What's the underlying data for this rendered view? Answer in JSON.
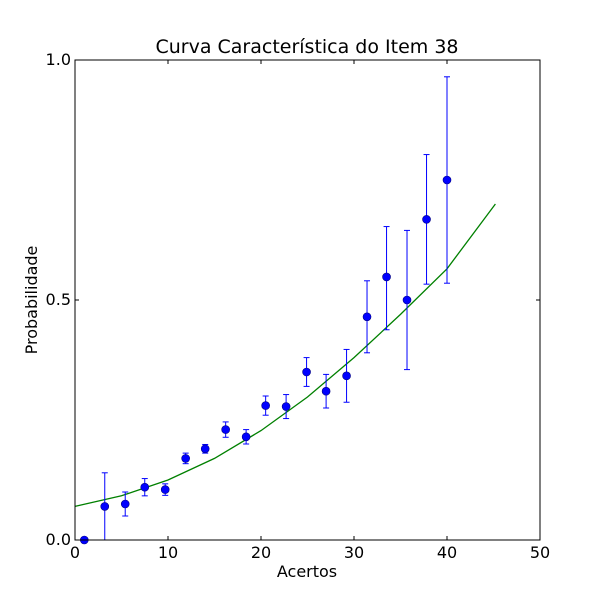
{
  "chart_data": {
    "type": "scatter",
    "title": "Curva Característica do Item 38",
    "xlabel": "Acertos",
    "ylabel": "Probabilidade",
    "xlim": [
      0,
      50
    ],
    "ylim": [
      0.0,
      1.0
    ],
    "xticks": [
      0,
      10,
      20,
      30,
      40,
      50
    ],
    "xtick_labels": [
      "0",
      "10",
      "20",
      "30",
      "40",
      "50"
    ],
    "yticks": [
      0.0,
      0.5,
      1.0
    ],
    "ytick_labels": [
      "0.0",
      "0.5",
      "1.0"
    ],
    "grid": false,
    "legend": "none",
    "points": {
      "color": "#0000ff",
      "x": [
        1.0,
        3.2,
        5.4,
        7.5,
        9.7,
        11.9,
        14.0,
        16.2,
        18.4,
        20.5,
        22.7,
        24.9,
        27.0,
        29.2,
        31.4,
        33.5,
        35.7,
        37.8,
        40.0
      ],
      "y": [
        0.0,
        0.07,
        0.075,
        0.11,
        0.105,
        0.17,
        0.19,
        0.23,
        0.215,
        0.28,
        0.278,
        0.35,
        0.31,
        0.342,
        0.465,
        0.548,
        0.5,
        0.668,
        0.75
      ],
      "err_low": [
        0.0,
        0.07,
        0.025,
        0.018,
        0.012,
        0.011,
        0.009,
        0.016,
        0.015,
        0.02,
        0.025,
        0.03,
        0.035,
        0.055,
        0.075,
        0.11,
        0.145,
        0.135,
        0.215
      ],
      "err_high": [
        0.0,
        0.07,
        0.025,
        0.018,
        0.012,
        0.011,
        0.009,
        0.016,
        0.015,
        0.02,
        0.025,
        0.03,
        0.035,
        0.055,
        0.075,
        0.105,
        0.145,
        0.135,
        0.215
      ]
    },
    "curve": {
      "color": "#008000",
      "x": [
        0,
        5,
        10,
        15,
        20,
        25,
        30,
        35,
        40,
        45.2
      ],
      "y": [
        0.07,
        0.092,
        0.125,
        0.17,
        0.228,
        0.298,
        0.38,
        0.47,
        0.565,
        0.7
      ]
    }
  }
}
